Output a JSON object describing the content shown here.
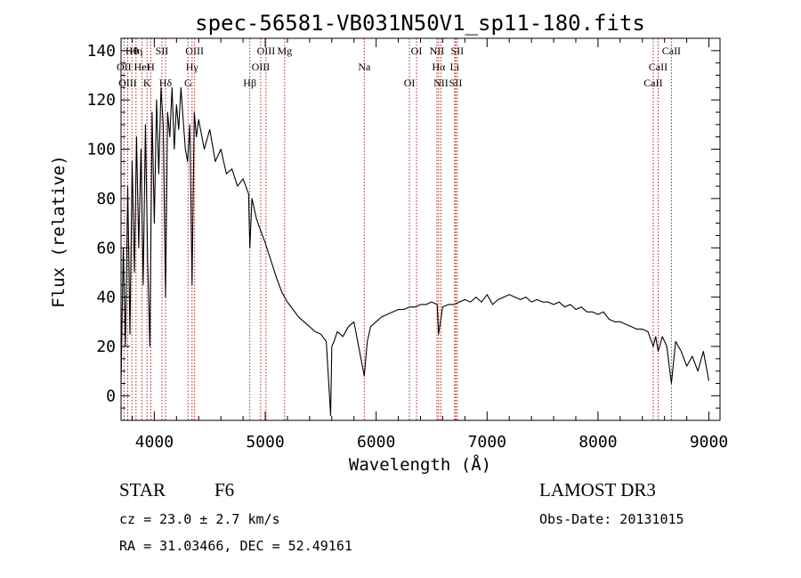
{
  "chart_data": {
    "type": "line",
    "title": "spec-56581-VB031N50V1_sp11-180.fits",
    "xlabel": "Wavelength (Å)",
    "ylabel": "Flux (relative)",
    "xlim": [
      3700,
      9100
    ],
    "ylim": [
      -10,
      145
    ],
    "xticks": [
      4000,
      5000,
      6000,
      7000,
      8000,
      9000
    ],
    "yticks": [
      0,
      20,
      40,
      60,
      80,
      100,
      120,
      140
    ],
    "series": [
      {
        "name": "flux",
        "x": [
          3700,
          3720,
          3740,
          3760,
          3780,
          3800,
          3820,
          3840,
          3860,
          3880,
          3900,
          3920,
          3940,
          3960,
          3980,
          4000,
          4020,
          4040,
          4060,
          4080,
          4101,
          4120,
          4140,
          4160,
          4180,
          4200,
          4220,
          4240,
          4260,
          4280,
          4300,
          4320,
          4340,
          4360,
          4380,
          4400,
          4450,
          4500,
          4550,
          4600,
          4650,
          4700,
          4750,
          4800,
          4850,
          4861,
          4880,
          4920,
          4950,
          5000,
          5050,
          5100,
          5150,
          5200,
          5250,
          5300,
          5350,
          5400,
          5450,
          5500,
          5550,
          5590,
          5600,
          5620,
          5650,
          5700,
          5750,
          5800,
          5850,
          5893,
          5920,
          5950,
          6000,
          6050,
          6100,
          6150,
          6200,
          6250,
          6300,
          6350,
          6400,
          6450,
          6500,
          6550,
          6563,
          6600,
          6650,
          6700,
          6750,
          6800,
          6850,
          6900,
          6950,
          7000,
          7050,
          7100,
          7150,
          7200,
          7250,
          7300,
          7350,
          7400,
          7450,
          7500,
          7550,
          7600,
          7650,
          7700,
          7750,
          7800,
          7850,
          7900,
          7950,
          8000,
          8050,
          8100,
          8150,
          8200,
          8250,
          8300,
          8350,
          8400,
          8450,
          8498,
          8520,
          8542,
          8580,
          8600,
          8620,
          8662,
          8700,
          8750,
          8800,
          8850,
          8900,
          8950,
          9000
        ],
        "y": [
          5,
          60,
          20,
          85,
          25,
          95,
          50,
          105,
          60,
          100,
          45,
          110,
          55,
          20,
          115,
          70,
          120,
          90,
          125,
          110,
          40,
          115,
          105,
          125,
          100,
          118,
          108,
          125,
          112,
          100,
          95,
          110,
          45,
          115,
          105,
          112,
          100,
          108,
          95,
          100,
          90,
          92,
          85,
          88,
          82,
          60,
          80,
          72,
          68,
          62,
          55,
          48,
          42,
          38,
          35,
          32,
          30,
          28,
          26,
          25,
          22,
          -8,
          20,
          22,
          26,
          24,
          28,
          30,
          18,
          8,
          22,
          28,
          30,
          32,
          33,
          34,
          35,
          35,
          36,
          36,
          37,
          37,
          38,
          37,
          25,
          36,
          37,
          37,
          38,
          39,
          38,
          40,
          38,
          41,
          37,
          39,
          40,
          41,
          40,
          39,
          40,
          38,
          39,
          38,
          38,
          37,
          38,
          36,
          37,
          35,
          36,
          34,
          34,
          33,
          34,
          31,
          30,
          30,
          29,
          28,
          27,
          27,
          26,
          20,
          24,
          18,
          24,
          22,
          20,
          5,
          22,
          18,
          12,
          16,
          10,
          18,
          6
        ]
      }
    ],
    "lines": [
      {
        "label": "Hθ",
        "x": 3798
      },
      {
        "label": "OII",
        "x": 3727
      },
      {
        "label": "OIII",
        "x": 3760
      },
      {
        "label": "Hη",
        "x": 3835
      },
      {
        "label": "HeI",
        "x": 3889
      },
      {
        "label": "K",
        "x": 3934
      },
      {
        "label": "SII",
        "x": 4069
      },
      {
        "label": "H",
        "x": 3968
      },
      {
        "label": "Hδ",
        "x": 4101
      },
      {
        "label": "OIII",
        "x": 4363
      },
      {
        "label": "Hγ",
        "x": 4340
      },
      {
        "label": "G",
        "x": 4304
      },
      {
        "label": "OIII",
        "x": 5007
      },
      {
        "label": "OIII",
        "x": 4959
      },
      {
        "label": "Hβ",
        "x": 4861
      },
      {
        "label": "Mg",
        "x": 5175
      },
      {
        "label": "Na",
        "x": 5893
      },
      {
        "label": "OI",
        "x": 6300
      },
      {
        "label": "OI",
        "x": 6364
      },
      {
        "label": "Hα",
        "x": 6563
      },
      {
        "label": "SII",
        "x": 6717
      },
      {
        "label": "NII",
        "x": 6548
      },
      {
        "label": "Li",
        "x": 6708
      },
      {
        "label": "NII",
        "x": 6584
      },
      {
        "label": "SII",
        "x": 6731
      },
      {
        "label": "CaII",
        "x": 8542
      },
      {
        "label": "CaII",
        "x": 8498
      },
      {
        "label": "CaII",
        "x": 8662
      }
    ]
  },
  "info": {
    "object_class": "STAR",
    "subclass": "F6",
    "survey": "LAMOST DR3",
    "cz": "cz = 23.0 ± 2.7 km/s",
    "obs_date": "Obs-Date: 20131015",
    "radec": "RA =  31.03466, DEC =  52.49161"
  }
}
